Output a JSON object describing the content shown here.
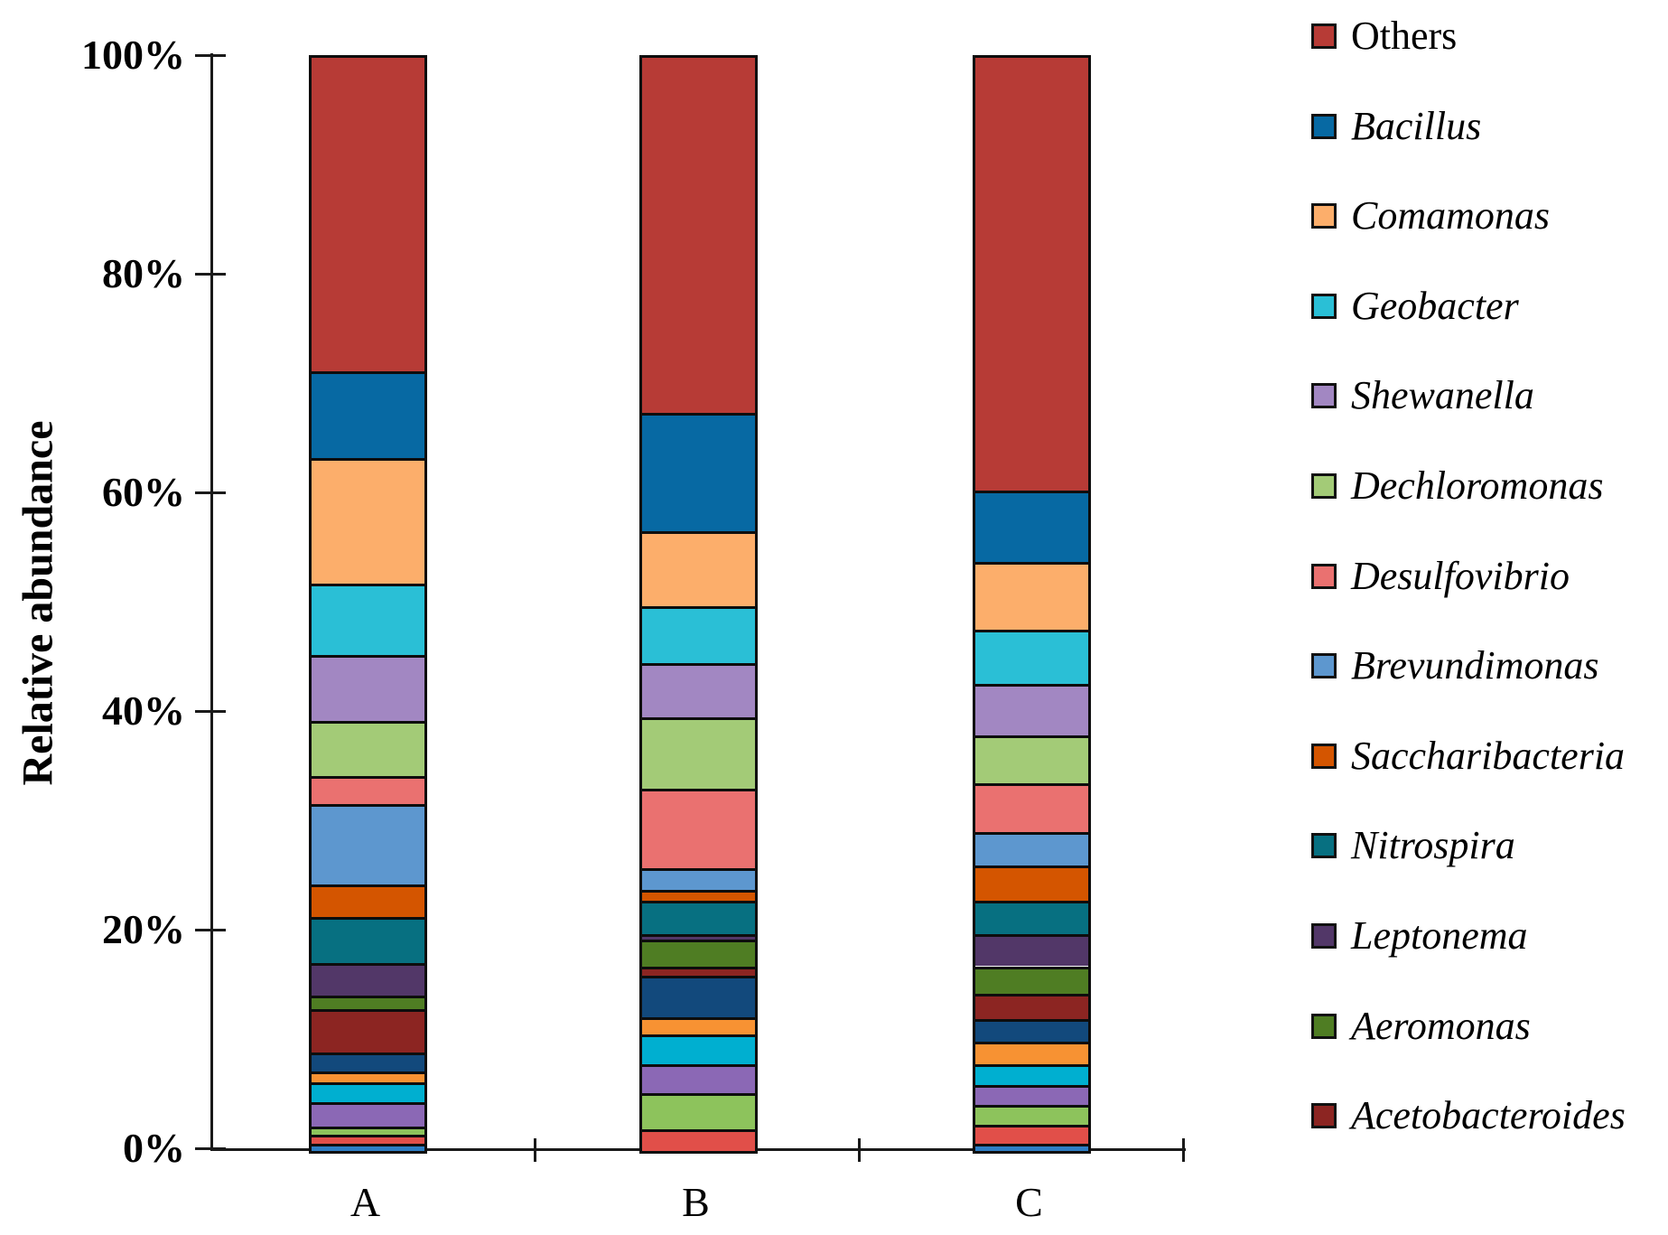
{
  "figure": {
    "background": "#ffffff",
    "axis_color": "#1a1a1a"
  },
  "chart_data": {
    "type": "bar",
    "stacked": true,
    "title": "",
    "xlabel": "",
    "ylabel": "Relative abundance",
    "categories": [
      "A",
      "B",
      "C"
    ],
    "ylim": [
      0,
      100
    ],
    "yticks": [
      {
        "value": 0,
        "label": "0%"
      },
      {
        "value": 20,
        "label": "20%"
      },
      {
        "value": 40,
        "label": "40%"
      },
      {
        "value": 60,
        "label": "60%"
      },
      {
        "value": 80,
        "label": "80%"
      },
      {
        "value": 100,
        "label": "100%"
      }
    ],
    "grid": false,
    "legend_position": "right",
    "stack_order": "first series at top of bar, later series below",
    "note": "values are percent relative abundance estimated from axis; segments below Acetobacteroides are minor unlabeled genera drawn with a repeating palette",
    "series": [
      {
        "name": "Others",
        "color": "#b73b36",
        "italic": false,
        "in_legend": true,
        "values": [
          28.7,
          32.5,
          39.6
        ]
      },
      {
        "name": "Bacillus",
        "color": "#0769a3",
        "italic": true,
        "in_legend": true,
        "values": [
          7.9,
          10.8,
          6.5
        ]
      },
      {
        "name": "Comamonas",
        "color": "#fcae6b",
        "italic": true,
        "in_legend": true,
        "values": [
          11.5,
          6.9,
          6.2
        ]
      },
      {
        "name": "Geobacter",
        "color": "#2abfd6",
        "italic": true,
        "in_legend": true,
        "values": [
          6.5,
          5.2,
          5.0
        ]
      },
      {
        "name": "Shewanella",
        "color": "#a287c2",
        "italic": true,
        "in_legend": true,
        "values": [
          6.1,
          4.9,
          4.7
        ]
      },
      {
        "name": "Dechloromonas",
        "color": "#a3cb77",
        "italic": true,
        "in_legend": true,
        "values": [
          5.0,
          6.6,
          4.4
        ]
      },
      {
        "name": "Desulfovibrio",
        "color": "#ea7170",
        "italic": true,
        "in_legend": true,
        "values": [
          2.6,
          7.2,
          4.4
        ]
      },
      {
        "name": "Brevundimonas",
        "color": "#5d97cf",
        "italic": true,
        "in_legend": true,
        "values": [
          7.3,
          2.0,
          3.1
        ]
      },
      {
        "name": "Saccharibacteria",
        "color": "#d45500",
        "italic": true,
        "in_legend": true,
        "values": [
          3.0,
          1.0,
          3.2
        ]
      },
      {
        "name": "Nitrospira",
        "color": "#077081",
        "italic": true,
        "in_legend": true,
        "values": [
          4.2,
          3.1,
          3.1
        ]
      },
      {
        "name": "Leptonema",
        "color": "#523768",
        "italic": true,
        "in_legend": true,
        "values": [
          3.0,
          0.5,
          2.9
        ]
      },
      {
        "name": "Aeromonas",
        "color": "#4f7d23",
        "italic": true,
        "in_legend": true,
        "values": [
          1.2,
          2.4,
          2.5
        ]
      },
      {
        "name": "Acetobacteroides",
        "color": "#8c2522",
        "italic": true,
        "in_legend": true,
        "values": [
          4.0,
          0.9,
          2.3
        ]
      },
      {
        "name": "unlabeled-navy",
        "color": "#12497c",
        "italic": false,
        "in_legend": false,
        "values": [
          1.7,
          3.8,
          2.1
        ]
      },
      {
        "name": "unlabeled-orange",
        "color": "#f79233",
        "italic": false,
        "in_legend": false,
        "values": [
          1.0,
          1.5,
          2.1
        ]
      },
      {
        "name": "unlabeled-cyan",
        "color": "#00afd0",
        "italic": false,
        "in_legend": false,
        "values": [
          1.8,
          2.8,
          1.9
        ]
      },
      {
        "name": "unlabeled-purple",
        "color": "#8b68b5",
        "italic": false,
        "in_legend": false,
        "values": [
          2.3,
          2.6,
          1.8
        ]
      },
      {
        "name": "unlabeled-green",
        "color": "#8dc35c",
        "italic": false,
        "in_legend": false,
        "values": [
          0.7,
          3.3,
          1.8
        ]
      },
      {
        "name": "unlabeled-red",
        "color": "#e14f49",
        "italic": false,
        "in_legend": false,
        "values": [
          0.8,
          2.0,
          1.7
        ]
      },
      {
        "name": "unlabeled-blue",
        "color": "#2e7ec4",
        "italic": false,
        "in_legend": false,
        "values": [
          0.7,
          0.0,
          0.7
        ]
      }
    ]
  }
}
